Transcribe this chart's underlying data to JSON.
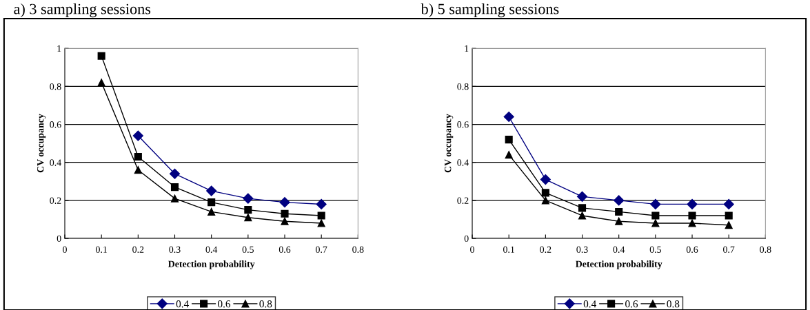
{
  "chart_data": [
    {
      "type": "line",
      "title": "a) 3 sampling sessions",
      "xlabel": "Detection probability",
      "ylabel": "CV occupancy",
      "x": [
        0.1,
        0.2,
        0.3,
        0.4,
        0.5,
        0.6,
        0.7
      ],
      "series": [
        {
          "name": "0.4",
          "color": "#000080",
          "marker": "diamond",
          "values": [
            null,
            0.54,
            0.34,
            0.25,
            0.21,
            0.19,
            0.18
          ]
        },
        {
          "name": "0.6",
          "color": "#000000",
          "marker": "square",
          "values": [
            0.96,
            0.43,
            0.27,
            0.19,
            0.15,
            0.13,
            0.12
          ]
        },
        {
          "name": "0.8",
          "color": "#000000",
          "marker": "triangle",
          "values": [
            0.82,
            0.36,
            0.21,
            0.14,
            0.11,
            0.09,
            0.08
          ]
        }
      ],
      "xlim": [
        0,
        0.8
      ],
      "xticks": [
        0,
        0.1,
        0.2,
        0.3,
        0.4,
        0.5,
        0.6,
        0.7,
        0.8
      ],
      "ylim": [
        0,
        1
      ],
      "yticks": [
        0,
        0.2,
        0.4,
        0.6,
        0.8,
        1
      ],
      "grid": "y",
      "legend": "bottom",
      "line_style": "solid"
    },
    {
      "type": "line",
      "title": "b) 5 sampling sessions",
      "xlabel": "Detection probability",
      "ylabel": "CV occupancy",
      "x": [
        0.1,
        0.2,
        0.3,
        0.4,
        0.5,
        0.6,
        0.7
      ],
      "series": [
        {
          "name": "0.4",
          "color": "#000080",
          "marker": "diamond",
          "values": [
            0.64,
            0.31,
            0.22,
            0.2,
            0.18,
            0.18,
            0.18
          ]
        },
        {
          "name": "0.6",
          "color": "#000000",
          "marker": "square",
          "values": [
            0.52,
            0.24,
            0.16,
            0.14,
            0.12,
            0.12,
            0.12
          ]
        },
        {
          "name": "0.8",
          "color": "#000000",
          "marker": "triangle",
          "values": [
            0.44,
            0.2,
            0.12,
            0.09,
            0.08,
            0.08,
            0.07
          ]
        }
      ],
      "xlim": [
        0,
        0.8
      ],
      "xticks": [
        0,
        0.1,
        0.2,
        0.3,
        0.4,
        0.5,
        0.6,
        0.7,
        0.8
      ],
      "ylim": [
        0,
        1
      ],
      "yticks": [
        0,
        0.2,
        0.4,
        0.6,
        0.8,
        1
      ],
      "grid": "y",
      "legend": "bottom",
      "line_style": "solid"
    }
  ]
}
